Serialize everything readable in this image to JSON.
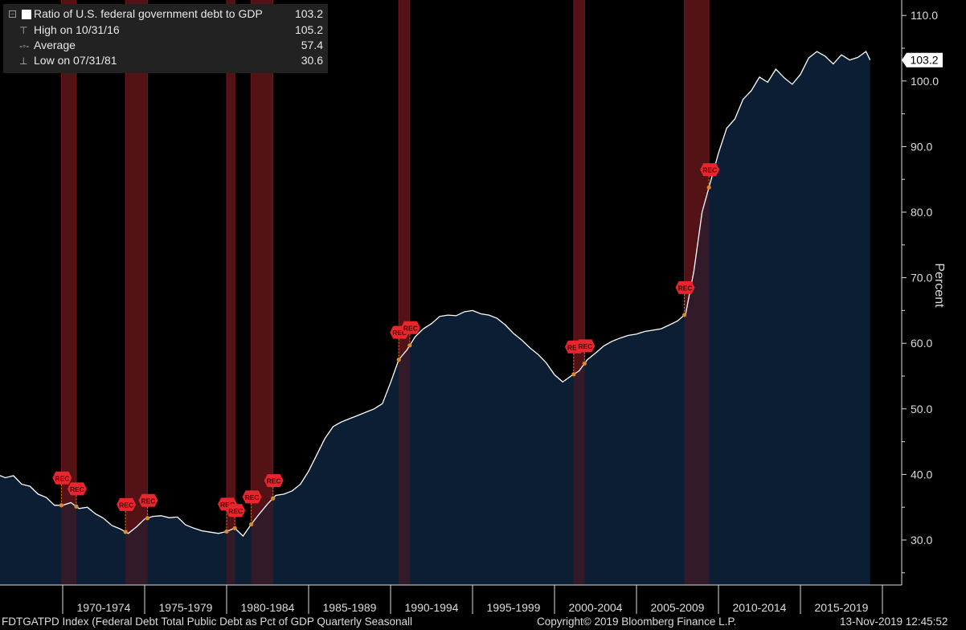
{
  "legend": {
    "series_label": "Ratio of U.S. federal government debt to GDP",
    "series_value": "103.2",
    "high_label": "High on 10/31/16",
    "high_value": "105.2",
    "avg_label": "Average",
    "avg_value": "57.4",
    "low_label": "Low on 07/31/81",
    "low_value": "30.6"
  },
  "footer": {
    "left": "FDTGATPD Index (Federal Debt Total Public Debt as Pct of GDP Quarterly Seasonall",
    "center": "Copyright© 2019 Bloomberg Finance L.P.",
    "right": "13-Nov-2019 12:45:52"
  },
  "chart_data": {
    "type": "area",
    "ylabel": "Percent",
    "ylim": [
      24,
      112
    ],
    "y_ticks": [
      "110.0",
      "100.0",
      "90.0",
      "80.0",
      "70.0",
      "60.0",
      "50.0",
      "40.0",
      "30.0"
    ],
    "x_tick_labels": [
      "1970-1974",
      "1975-1979",
      "1980-1984",
      "1985-1989",
      "1990-1994",
      "1995-1999",
      "2000-2004",
      "2005-2009",
      "2010-2014",
      "2015-2019"
    ],
    "last_value_label": "103.2",
    "x": [
      1966.0,
      1966.5,
      1967.0,
      1967.5,
      1968.0,
      1968.5,
      1969.0,
      1969.5,
      1970.0,
      1970.5,
      1971.0,
      1971.5,
      1972.0,
      1972.5,
      1973.0,
      1973.5,
      1974.0,
      1974.5,
      1975.0,
      1975.5,
      1976.0,
      1976.5,
      1977.0,
      1977.5,
      1978.0,
      1978.5,
      1979.0,
      1979.5,
      1980.0,
      1980.5,
      1981.0,
      1981.5,
      1982.0,
      1982.5,
      1983.0,
      1983.5,
      1984.0,
      1984.5,
      1985.0,
      1985.5,
      1986.0,
      1986.5,
      1987.0,
      1987.5,
      1988.0,
      1988.5,
      1989.0,
      1989.5,
      1990.0,
      1990.5,
      1991.0,
      1991.5,
      1992.0,
      1992.5,
      1993.0,
      1993.5,
      1994.0,
      1994.5,
      1995.0,
      1995.5,
      1996.0,
      1996.5,
      1997.0,
      1997.5,
      1998.0,
      1998.5,
      1999.0,
      1999.5,
      2000.0,
      2000.5,
      2001.0,
      2001.5,
      2002.0,
      2002.5,
      2003.0,
      2003.5,
      2004.0,
      2004.5,
      2005.0,
      2005.5,
      2006.0,
      2006.5,
      2007.0,
      2007.5,
      2008.0,
      2008.5,
      2009.0,
      2009.5,
      2010.0,
      2010.5,
      2011.0,
      2011.5,
      2012.0,
      2012.5,
      2013.0,
      2013.5,
      2014.0,
      2014.5,
      2015.0,
      2015.5,
      2016.0,
      2016.5,
      2017.0,
      2017.5,
      2018.0,
      2018.5,
      2019.0,
      2019.25
    ],
    "y": [
      40.0,
      39.5,
      39.8,
      38.5,
      38.2,
      37.0,
      36.5,
      35.3,
      35.3,
      35.7,
      34.8,
      35.0,
      34.0,
      33.3,
      32.2,
      31.7,
      31.0,
      32.0,
      33.2,
      33.6,
      33.7,
      33.4,
      33.5,
      32.3,
      31.8,
      31.4,
      31.2,
      31.0,
      31.3,
      31.8,
      30.6,
      32.4,
      34.0,
      35.5,
      36.8,
      37.0,
      37.5,
      38.5,
      40.5,
      43.0,
      45.5,
      47.3,
      48.0,
      48.5,
      49.0,
      49.5,
      50.0,
      50.8,
      54.0,
      57.5,
      59.0,
      61.0,
      62.2,
      63.0,
      64.1,
      64.3,
      64.2,
      64.8,
      65.0,
      64.5,
      64.3,
      63.8,
      62.8,
      61.5,
      60.5,
      59.3,
      58.3,
      57.0,
      55.2,
      54.1,
      55.0,
      55.8,
      57.5,
      58.5,
      59.6,
      60.3,
      60.8,
      61.2,
      61.4,
      61.8,
      62.0,
      62.2,
      62.8,
      63.4,
      64.5,
      71.0,
      80.0,
      84.5,
      89.0,
      92.8,
      94.2,
      97.2,
      98.5,
      100.6,
      99.8,
      101.8,
      100.5,
      99.5,
      101.0,
      103.5,
      104.5,
      103.8,
      102.6,
      104.0,
      103.2,
      103.6,
      104.5,
      103.2
    ],
    "recessions": [
      [
        1969.92,
        1970.83
      ],
      [
        1973.83,
        1975.17
      ],
      [
        1980.0,
        1980.5
      ],
      [
        1981.5,
        1982.83
      ],
      [
        1990.5,
        1991.17
      ],
      [
        2001.17,
        2001.83
      ],
      [
        2007.92,
        2009.42
      ]
    ],
    "recession_marker_label": "REC"
  },
  "colors": {
    "area_fill": "#0d2138",
    "line": "#ffffff",
    "recession_band": "#5a1518",
    "recession_edge": "#b3262b",
    "marker": "#e8262e",
    "axis": "#dcdcdc",
    "legend_bg": "#222222"
  }
}
